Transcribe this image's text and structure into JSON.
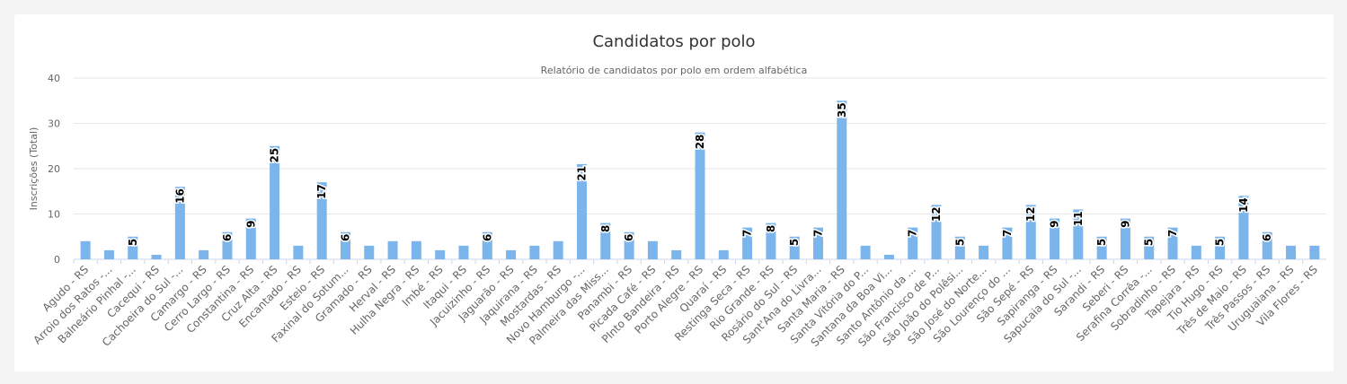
{
  "chart_data": {
    "type": "bar",
    "title": "Candidatos por polo",
    "subtitle": "Relatório de candidatos por polo em ordem alfabética",
    "ylabel": "Inscrições (Total)",
    "xlabel": "",
    "ylim": [
      0,
      40
    ],
    "yticks": [
      "0",
      "10",
      "20",
      "30",
      "40"
    ],
    "grid": true,
    "bar_color": "#7cb5ec",
    "categories": [
      "Agudo - RS",
      "Arroio dos Ratos -...",
      "Balneário Pinhal -...",
      "Cacequi - RS",
      "Cachoeira do Sul -...",
      "Camargo - RS",
      "Cerro Largo - RS",
      "Constantina - RS",
      "Cruz Alta - RS",
      "Encantado - RS",
      "Esteio - RS",
      "Faxinal do Sotum...",
      "Gramado - RS",
      "Herval - RS",
      "Hulha Negra - RS",
      "Imbé - RS",
      "Itaqui - RS",
      "Jacuizinho - RS",
      "Jaguarão - RS",
      "Jaquirana - RS",
      "Mostardas - RS",
      "Novo Hamburgo -...",
      "Palmeira das Miss...",
      "Panambi - RS",
      "Picada Café - RS",
      "PInto Bandeira - RS",
      "Porto Alegre - RS",
      "Quaraí - RS",
      "Restinga Seca - RS",
      "Rio Grande - RS",
      "Rosário do Sul - RS",
      "Sant'Ana do Livra...",
      "Santa Maria - RS",
      "Santa Vitória do P...",
      "Santana da Boa Vi...",
      "Santo Antônio da ...",
      "São Francisco de P...",
      "São João do Polêsi...",
      "São José do Norte...",
      "São Lourenço do ...",
      "São Sepé - RS",
      "Sapiranga - RS",
      "Sapucaia do Sul -...",
      "Sarandi - RS",
      "Seberi - RS",
      "Serafina Corrêa -...",
      "Sobradinho - RS",
      "Tapejara - RS",
      "Tio Hugo - RS",
      "Três de Maio - RS",
      "Três Passos - RS",
      "Uruguaiana - RS",
      "Vila Flores - RS"
    ],
    "values": [
      4,
      2,
      5,
      1,
      16,
      2,
      6,
      9,
      25,
      3,
      17,
      6,
      3,
      4,
      4,
      2,
      3,
      6,
      2,
      3,
      4,
      21,
      8,
      6,
      4,
      2,
      28,
      2,
      7,
      8,
      5,
      7,
      35,
      3,
      1,
      7,
      12,
      5,
      3,
      7,
      12,
      9,
      11,
      5,
      9,
      5,
      7,
      3,
      5,
      14,
      6,
      3,
      3
    ],
    "data_labels": [
      null,
      null,
      "5",
      null,
      "16",
      null,
      "6",
      "9",
      "25",
      null,
      "17",
      "6",
      null,
      null,
      null,
      null,
      null,
      "6",
      null,
      null,
      null,
      "21",
      "8",
      "6",
      null,
      null,
      "28",
      null,
      "7",
      "8",
      "5",
      "7",
      "35",
      null,
      null,
      "7",
      "12",
      "5",
      null,
      "7",
      "12",
      "9",
      "11",
      "5",
      "9",
      "5",
      "7",
      null,
      "5",
      "14",
      "6",
      null,
      null
    ]
  }
}
